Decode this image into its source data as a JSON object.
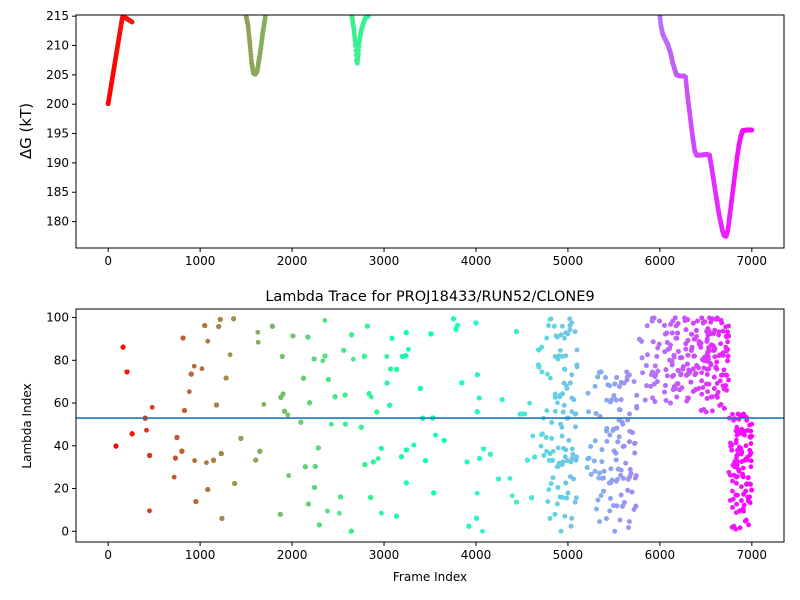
{
  "chart_data": [
    {
      "type": "scatter",
      "title": "",
      "xlabel": "",
      "ylabel": "ΔG (kT)",
      "xlim": [
        -350,
        7350
      ],
      "ylim": [
        175.5,
        215.2
      ],
      "xticks": [
        0,
        1000,
        2000,
        3000,
        4000,
        5000,
        6000,
        7000
      ],
      "yticks": [
        180,
        185,
        190,
        195,
        200,
        205,
        210,
        215
      ],
      "grid": false,
      "colormap": "rainbow (red at low frame index to violet at high frame index)",
      "series": [
        {
          "points_approx": [
            [
              0,
              200.1
            ],
            [
              150,
              214.4
            ],
            [
              160,
              215.0
            ],
            [
              260,
              214.0
            ],
            [
              1500,
              215.0
            ],
            [
              1520,
              213.5
            ],
            [
              1540,
              210.5
            ],
            [
              1560,
              207.0
            ],
            [
              1580,
              205.3
            ],
            [
              1600,
              205.1
            ],
            [
              1620,
              205.6
            ],
            [
              1640,
              207.5
            ],
            [
              1660,
              209.5
            ],
            [
              1680,
              212.0
            ],
            [
              1700,
              214.0
            ],
            [
              1710,
              215.0
            ],
            [
              2650,
              215.0
            ],
            [
              2670,
              213.0
            ],
            [
              2690,
              210.0
            ],
            [
              2700,
              207.5
            ],
            [
              2710,
              207.0
            ],
            [
              2720,
              208.5
            ],
            [
              2730,
              210.5
            ],
            [
              2750,
              212.5
            ],
            [
              2780,
              214.0
            ],
            [
              2800,
              214.8
            ],
            [
              2830,
              215.0
            ],
            [
              6000,
              215.0
            ],
            [
              6010,
              213.5
            ],
            [
              6030,
              212.0
            ],
            [
              6060,
              211.0
            ],
            [
              6090,
              210.0
            ],
            [
              6120,
              208.5
            ],
            [
              6140,
              207.0
            ],
            [
              6160,
              206.0
            ],
            [
              6180,
              205.0
            ],
            [
              6220,
              204.8
            ],
            [
              6260,
              204.8
            ],
            [
              6280,
              204.6
            ],
            [
              6290,
              203.0
            ],
            [
              6300,
              201.5
            ],
            [
              6320,
              199.0
            ],
            [
              6340,
              196.5
            ],
            [
              6360,
              194.0
            ],
            [
              6380,
              192.0
            ],
            [
              6400,
              191.3
            ],
            [
              6440,
              191.3
            ],
            [
              6480,
              191.4
            ],
            [
              6520,
              191.4
            ],
            [
              6540,
              191.3
            ],
            [
              6560,
              189.5
            ],
            [
              6580,
              187.5
            ],
            [
              6600,
              185.5
            ],
            [
              6620,
              183.5
            ],
            [
              6640,
              181.5
            ],
            [
              6660,
              180.0
            ],
            [
              6680,
              178.5
            ],
            [
              6700,
              177.6
            ],
            [
              6720,
              177.5
            ],
            [
              6740,
              178.5
            ],
            [
              6760,
              181.0
            ],
            [
              6780,
              183.5
            ],
            [
              6800,
              186.0
            ],
            [
              6820,
              188.5
            ],
            [
              6840,
              191.0
            ],
            [
              6860,
              193.0
            ],
            [
              6880,
              194.5
            ],
            [
              6900,
              195.5
            ],
            [
              6950,
              195.6
            ],
            [
              7000,
              195.6
            ]
          ]
        }
      ]
    },
    {
      "type": "scatter",
      "title": "Lambda Trace for PROJ18433/RUN52/CLONE9",
      "xlabel": "Frame Index",
      "ylabel": "Lambda Index",
      "xlim": [
        -350,
        7350
      ],
      "ylim": [
        -5,
        104
      ],
      "xticks": [
        0,
        1000,
        2000,
        3000,
        4000,
        5000,
        6000,
        7000
      ],
      "yticks": [
        0,
        20,
        40,
        60,
        80,
        100
      ],
      "grid": false,
      "reference_line": {
        "y": 53,
        "color": "#1f77b4"
      },
      "colormap": "rainbow (red at low frame index to violet at high frame index)",
      "dense_segments_approx": [
        {
          "x_range": [
            0,
            4700
          ],
          "y_range": [
            0,
            100
          ],
          "note": "frames sweep across the full lambda range"
        },
        {
          "x_range": [
            4700,
            5100
          ],
          "y_range": [
            0,
            100
          ],
          "note": "concentrated at upper values"
        },
        {
          "x_range": [
            5200,
            5750
          ],
          "y_range": [
            0,
            75
          ]
        },
        {
          "x_range": [
            5750,
            6400
          ],
          "y_range": [
            60,
            100
          ],
          "note": "dense band near 80-100"
        },
        {
          "x_range": [
            6400,
            6750
          ],
          "y_range": [
            55,
            100
          ]
        },
        {
          "x_range": [
            6750,
            7000
          ],
          "y_range": [
            0,
            55
          ],
          "note": "dense cluster near 0-30"
        }
      ],
      "gaps_approx": [
        [
          1450,
          1580
        ],
        [
          4100,
          4150
        ],
        [
          5100,
          5200
        ],
        [
          6000,
          6050
        ]
      ]
    }
  ]
}
